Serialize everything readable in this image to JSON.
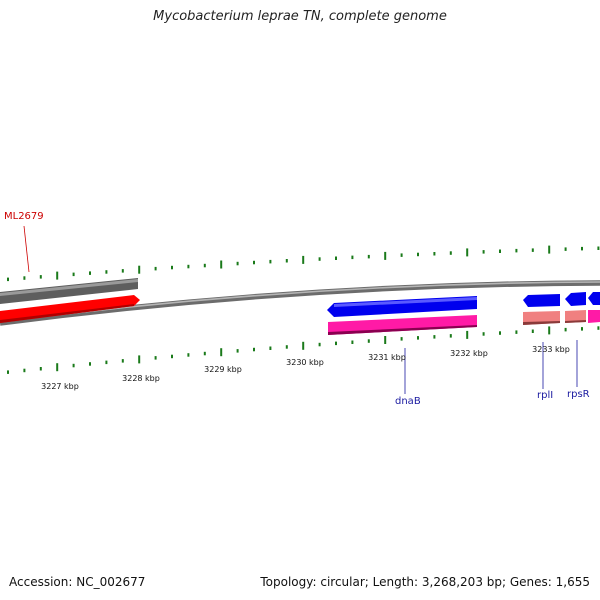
{
  "title": "Mycobacterium leprae TN, complete genome",
  "footer": {
    "accession": "Accession: NC_002677",
    "topology": "Topology: circular; Length: 3,268,203 bp; Genes: 1,655"
  },
  "ticks": [
    {
      "label": "3227 kbp"
    },
    {
      "label": "3228 kbp"
    },
    {
      "label": "3229 kbp"
    },
    {
      "label": "3230 kbp"
    },
    {
      "label": "3231 kbp"
    },
    {
      "label": "3232 kbp"
    },
    {
      "label": "3233 kbp"
    }
  ],
  "genes": [
    {
      "label": "ML2679",
      "color": "#cc0000"
    },
    {
      "label": "dnaB",
      "color": "#1a1aa0"
    },
    {
      "label": "rplI",
      "color": "#1a1aa0"
    },
    {
      "label": "rpsR",
      "color": "#1a1aa0"
    }
  ],
  "colors": {
    "backbone": "#8a8a8a",
    "ticks": "#1a7a1a",
    "gray_feature": "#6a6a6a",
    "red_feature": "#ff0000",
    "blue_feature": "#0000ee",
    "magenta_feature": "#ff1aa6",
    "pink_feature": "#f08080"
  }
}
